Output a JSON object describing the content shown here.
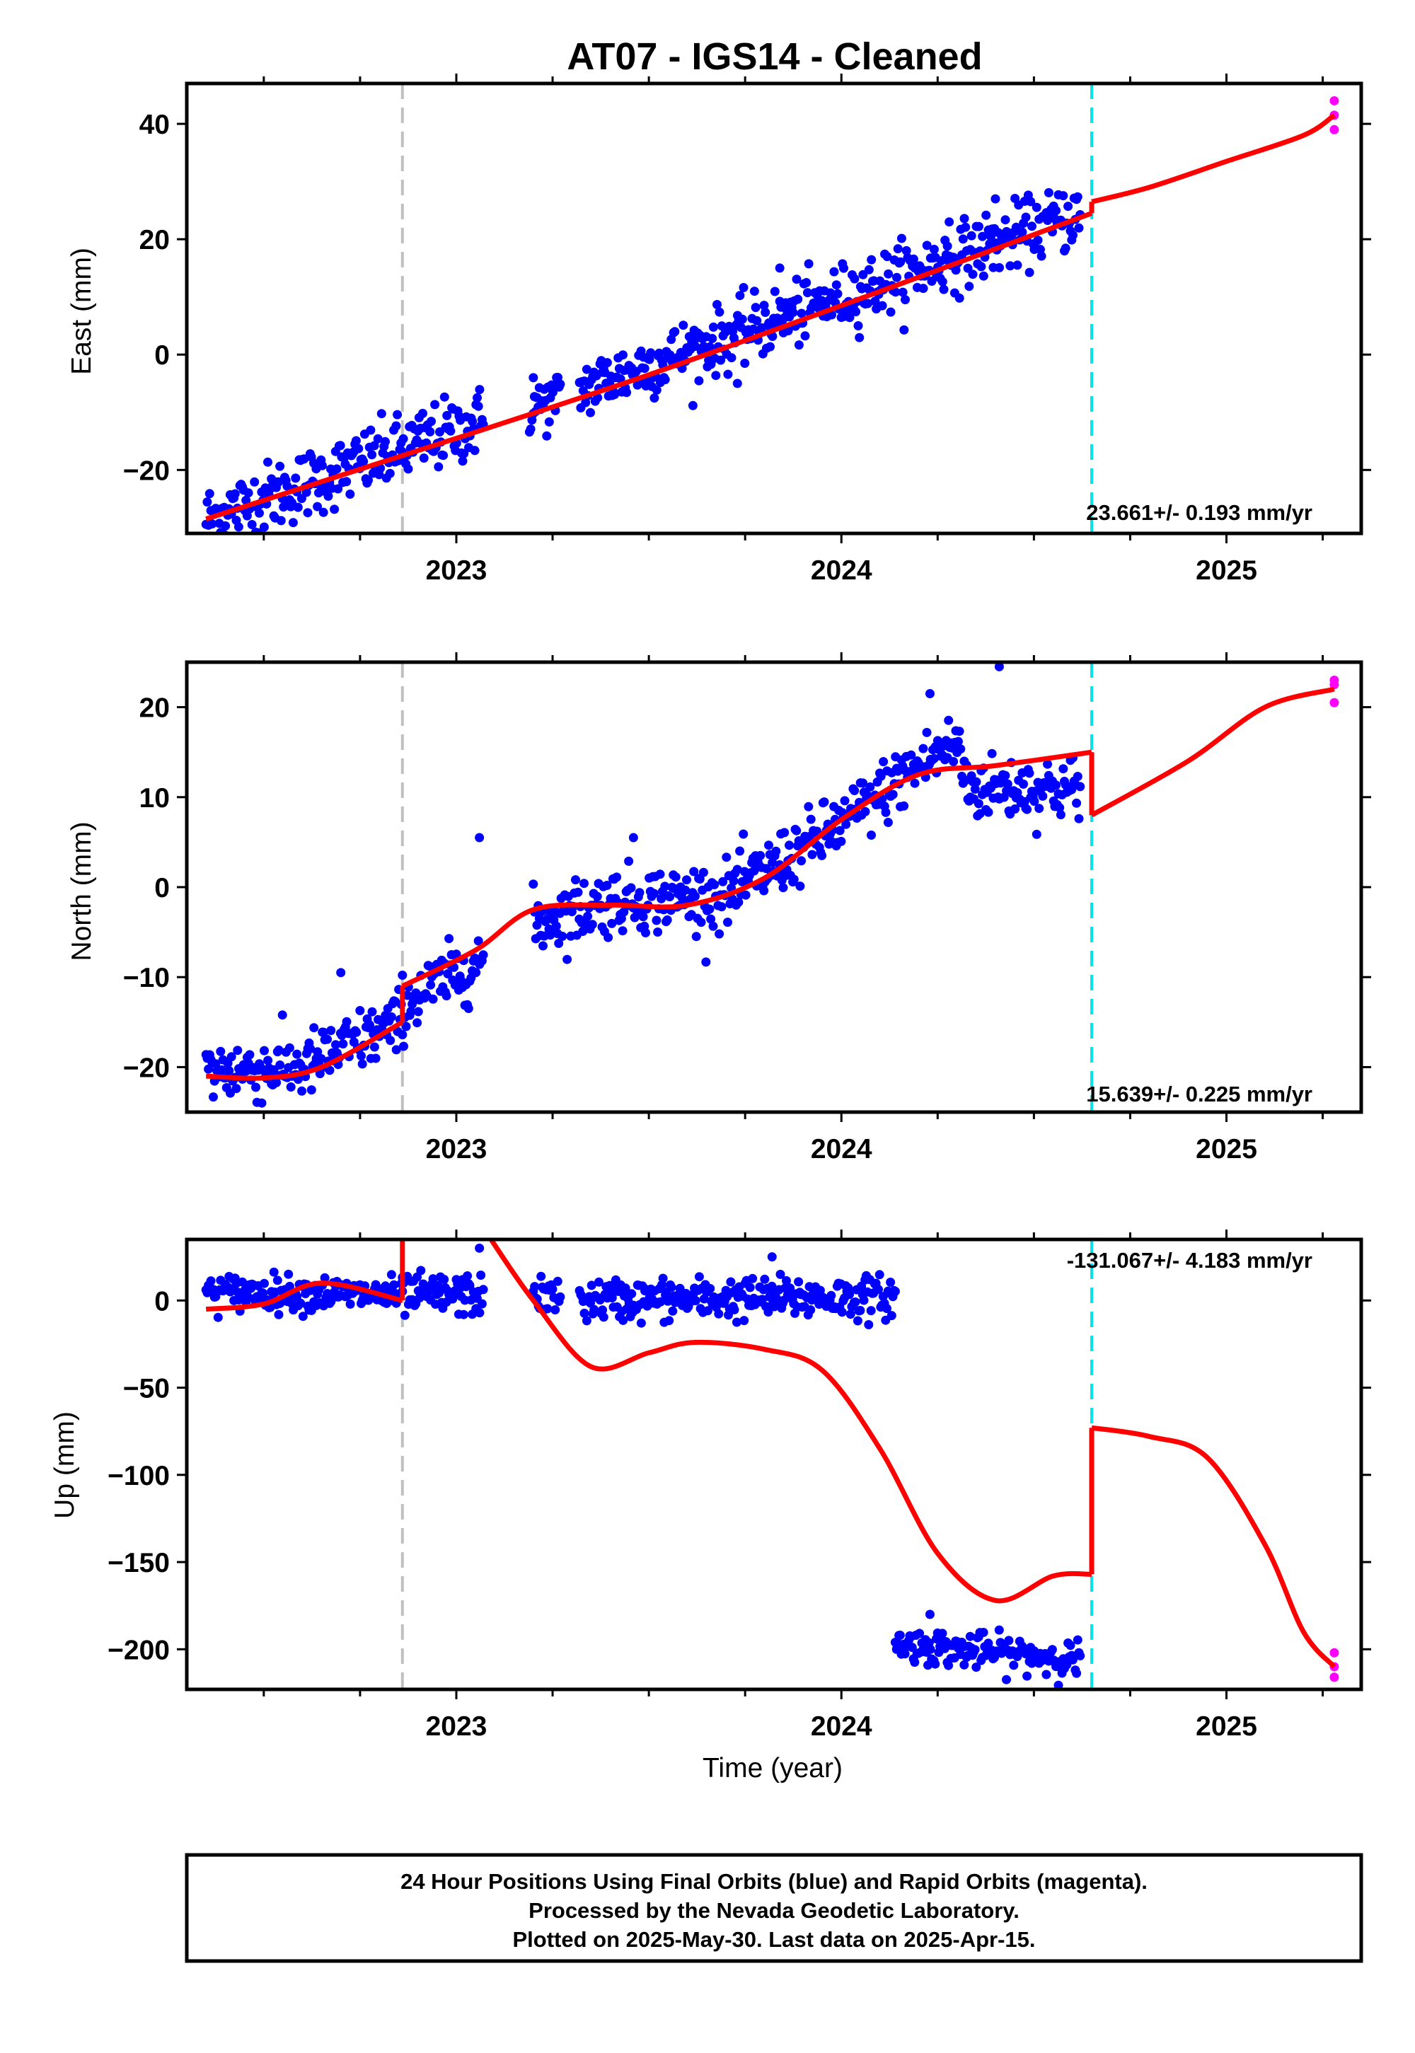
{
  "title": "AT07  - IGS14 - Cleaned",
  "colors": {
    "final_points": "#0000ff",
    "rapid_points": "#ff00ff",
    "model": "#ff0000",
    "event_line": "#c0c0c0",
    "data_end_line": "#00e5ee",
    "frame": "#000000"
  },
  "chart_data": [
    {
      "type": "scatter",
      "component": "east",
      "ylabel": "East (mm)",
      "xlabel": "",
      "xlim": [
        2022.3,
        2025.35
      ],
      "ylim": [
        -31,
        47
      ],
      "xticks": [
        2023,
        2024,
        2025
      ],
      "xtick_labels": [
        "2023",
        "2024",
        "2025"
      ],
      "yticks": [
        -20,
        0,
        20,
        40
      ],
      "ytick_labels": [
        "−20",
        "0",
        "20",
        "40"
      ],
      "rate_text": "23.661+/- 0.193 mm/yr",
      "rate_position": "bottom-right",
      "event_line_x": 2022.86,
      "data_end_line_x": 2024.65,
      "final_segments": [
        {
          "x_start": 2022.35,
          "x_end": 2023.07,
          "y_start": -28.5,
          "y_end": -11.5,
          "scatter": 3.0
        },
        {
          "x_start": 2023.19,
          "x_end": 2023.27,
          "y_start": -9.5,
          "y_end": -7.5,
          "scatter": 2.5
        },
        {
          "x_start": 2023.32,
          "x_end": 2024.62,
          "y_start": -6.0,
          "y_end": 24.5,
          "scatter": 2.8
        }
      ],
      "outliers": [
        {
          "x": 2023.84,
          "y": 15.0
        },
        {
          "x": 2023.73,
          "y": -5.0
        },
        {
          "x": 2024.28,
          "y": 23.0
        },
        {
          "x": 2024.4,
          "y": 27.0
        },
        {
          "x": 2023.2,
          "y": -4.0
        }
      ],
      "rapid_points": [
        {
          "x": 2025.28,
          "y": 44.0
        },
        {
          "x": 2025.28,
          "y": 41.5
        },
        {
          "x": 2025.28,
          "y": 39.0
        }
      ],
      "model_segments": [
        [
          [
            2022.35,
            -28.5
          ],
          [
            2022.86,
            -17.5
          ],
          [
            2023.07,
            -13.0
          ],
          [
            2023.5,
            -3.5
          ],
          [
            2024.0,
            8.5
          ],
          [
            2024.65,
            24.5
          ]
        ],
        [
          [
            2024.65,
            26.5
          ],
          [
            2024.8,
            29.0
          ],
          [
            2025.0,
            33.5
          ],
          [
            2025.2,
            38.0
          ],
          [
            2025.28,
            41.5
          ]
        ]
      ]
    },
    {
      "type": "scatter",
      "component": "north",
      "ylabel": "North (mm)",
      "xlabel": "",
      "xlim": [
        2022.3,
        2025.35
      ],
      "ylim": [
        -25,
        25
      ],
      "xticks": [
        2023,
        2024,
        2025
      ],
      "xtick_labels": [
        "2023",
        "2024",
        "2025"
      ],
      "yticks": [
        -20,
        -10,
        0,
        10,
        20
      ],
      "ytick_labels": [
        "−20",
        "−10",
        "0",
        "10",
        "20"
      ],
      "rate_text": "15.639+/- 0.225 mm/yr",
      "rate_position": "bottom-right",
      "event_line_x": 2022.86,
      "data_end_line_x": 2024.65,
      "final_segments": [
        {
          "x_start": 2022.35,
          "x_end": 2022.86,
          "y_points": [
            [
              2022.35,
              -20.5
            ],
            [
              2022.6,
              -20.0
            ],
            [
              2022.86,
              -15.0
            ]
          ],
          "scatter": 1.8
        },
        {
          "x_start": 2022.86,
          "x_end": 2023.07,
          "y_points": [
            [
              2022.86,
              -13.0
            ],
            [
              2023.07,
              -8.0
            ]
          ],
          "scatter": 1.8
        },
        {
          "x_start": 2023.2,
          "x_end": 2024.62,
          "y_points": [
            [
              2023.2,
              -4.0
            ],
            [
              2023.4,
              -1.5
            ],
            [
              2023.7,
              -1.0
            ],
            [
              2024.0,
              7.0
            ],
            [
              2024.2,
              13.5
            ],
            [
              2024.3,
              16.0
            ],
            [
              2024.33,
              11.0
            ],
            [
              2024.62,
              11.0
            ]
          ],
          "scatter": 1.8
        }
      ],
      "outliers": [
        {
          "x": 2023.06,
          "y": 5.5
        },
        {
          "x": 2024.41,
          "y": 24.5
        },
        {
          "x": 2024.23,
          "y": 21.5
        },
        {
          "x": 2022.7,
          "y": -9.5
        },
        {
          "x": 2023.46,
          "y": 5.5
        }
      ],
      "rapid_points": [
        {
          "x": 2025.28,
          "y": 23.0
        },
        {
          "x": 2025.28,
          "y": 22.5
        },
        {
          "x": 2025.28,
          "y": 20.5
        }
      ],
      "model_segments": [
        [
          [
            2022.35,
            -21.0
          ],
          [
            2022.5,
            -21.2
          ],
          [
            2022.65,
            -20.0
          ],
          [
            2022.86,
            -15.0
          ]
        ],
        [
          [
            2022.86,
            -11.0
          ],
          [
            2023.05,
            -7.0
          ],
          [
            2023.2,
            -2.5
          ],
          [
            2023.4,
            -2.0
          ],
          [
            2023.6,
            -2.0
          ],
          [
            2023.8,
            1.0
          ],
          [
            2024.0,
            7.5
          ],
          [
            2024.2,
            12.5
          ],
          [
            2024.4,
            13.5
          ],
          [
            2024.65,
            15.0
          ]
        ],
        [
          [
            2024.65,
            8.0
          ],
          [
            2024.9,
            14.0
          ],
          [
            2025.1,
            20.0
          ],
          [
            2025.28,
            22.0
          ]
        ]
      ]
    },
    {
      "type": "scatter",
      "component": "up",
      "ylabel": "Up (mm)",
      "xlabel": "Time (year)",
      "xlim": [
        2022.3,
        2025.35
      ],
      "ylim": [
        -223,
        35
      ],
      "xticks": [
        2023,
        2024,
        2025
      ],
      "xtick_labels": [
        "2023",
        "2024",
        "2025"
      ],
      "yticks": [
        -200,
        -150,
        -100,
        -50,
        0
      ],
      "ytick_labels": [
        "−200",
        "−150",
        "−100",
        "−50",
        "0"
      ],
      "rate_text": "-131.067+/- 4.183 mm/yr",
      "rate_position": "top-right",
      "event_line_x": 2022.86,
      "data_end_line_x": 2024.65,
      "final_segments": [
        {
          "x_start": 2022.35,
          "x_end": 2022.86,
          "y_start": 5.0,
          "y_end": 3.0,
          "scatter": 5.0
        },
        {
          "x_start": 2022.86,
          "x_end": 2023.07,
          "y_start": 3.0,
          "y_end": 3.0,
          "scatter": 6.0
        },
        {
          "x_start": 2023.2,
          "x_end": 2023.27,
          "y_start": 3.0,
          "y_end": 2.0,
          "scatter": 5.0
        },
        {
          "x_start": 2023.32,
          "x_end": 2024.14,
          "y_start": 0.0,
          "y_end": 2.0,
          "scatter": 6.0
        },
        {
          "x_start": 2024.14,
          "x_end": 2024.62,
          "y_start": -197.0,
          "y_end": -206.0,
          "scatter": 5.0
        }
      ],
      "outliers": [
        {
          "x": 2023.06,
          "y": 30.0
        },
        {
          "x": 2024.23,
          "y": -180.0
        },
        {
          "x": 2023.82,
          "y": 25.0
        }
      ],
      "rapid_points": [
        {
          "x": 2025.28,
          "y": -202.0
        },
        {
          "x": 2025.28,
          "y": -210.0
        },
        {
          "x": 2025.28,
          "y": -216.0
        }
      ],
      "model_segments": [
        [
          [
            2022.35,
            -5.0
          ],
          [
            2022.5,
            -2.0
          ],
          [
            2022.65,
            10.0
          ],
          [
            2022.86,
            0.0
          ]
        ],
        [
          [
            2022.86,
            35.0
          ]
        ],
        [
          [
            2023.09,
            35.0
          ],
          [
            2023.2,
            0.0
          ],
          [
            2023.35,
            -38.0
          ],
          [
            2023.5,
            -30.0
          ],
          [
            2023.62,
            -24.0
          ],
          [
            2023.8,
            -28.0
          ],
          [
            2023.95,
            -40.0
          ],
          [
            2024.1,
            -85.0
          ],
          [
            2024.25,
            -145.0
          ],
          [
            2024.4,
            -172.0
          ],
          [
            2024.55,
            -158.0
          ],
          [
            2024.65,
            -157.0
          ]
        ],
        [
          [
            2024.65,
            -73.0
          ],
          [
            2024.8,
            -78.0
          ],
          [
            2024.95,
            -90.0
          ],
          [
            2025.1,
            -140.0
          ],
          [
            2025.2,
            -190.0
          ],
          [
            2025.28,
            -210.0
          ]
        ]
      ]
    }
  ],
  "footer": {
    "line1": "24 Hour Positions Using Final Orbits (blue) and Rapid Orbits (magenta).",
    "line2": "Processed by the Nevada Geodetic Laboratory.",
    "line3": "Plotted on 2025-May-30. Last data on 2025-Apr-15."
  }
}
